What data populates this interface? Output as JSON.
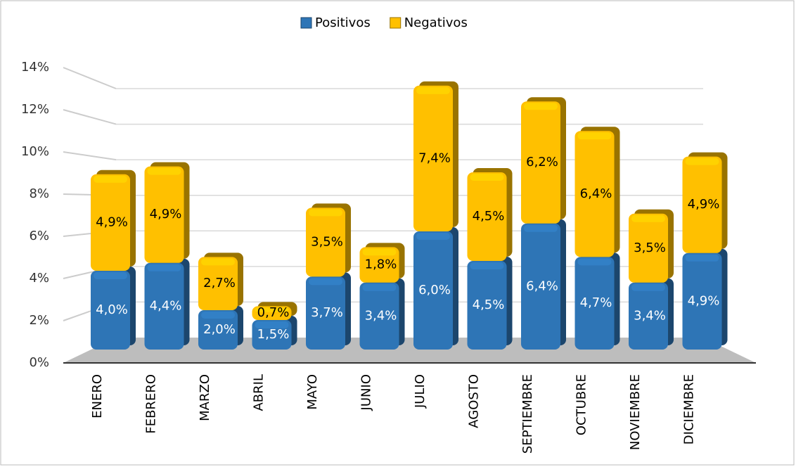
{
  "chart_data": {
    "type": "bar",
    "stacked": true,
    "categories": [
      "ENERO",
      "FEBRERO",
      "MARZO",
      "ABRIL",
      "MAYO",
      "JUNIO",
      "JULIO",
      "AGOSTO",
      "SEPTIEMBRE",
      "OCTUBRE",
      "NOVIEMBRE",
      "DICIEMBRE"
    ],
    "series": [
      {
        "name": "Positivos",
        "color": "#2e75b6",
        "values": [
          4.0,
          4.4,
          2.0,
          1.5,
          3.7,
          3.4,
          6.0,
          4.5,
          6.4,
          4.7,
          3.4,
          4.9
        ],
        "value_labels": [
          "4,0%",
          "4,4%",
          "2,0%",
          "1,5%",
          "3,7%",
          "3,4%",
          "6,0%",
          "4,5%",
          "6,4%",
          "4,7%",
          "3,4%",
          "4,9%"
        ]
      },
      {
        "name": "Negativos",
        "color": "#ffc000",
        "values": [
          4.9,
          4.9,
          2.7,
          0.7,
          3.5,
          1.8,
          7.4,
          4.5,
          6.2,
          6.4,
          3.5,
          4.9
        ],
        "value_labels": [
          "4,9%",
          "4,9%",
          "2,7%",
          "0,7%",
          "3,5%",
          "1,8%",
          "7,4%",
          "4,5%",
          "6,2%",
          "6,4%",
          "3,5%",
          "4,9%"
        ]
      }
    ],
    "ylim": [
      0,
      14
    ],
    "yticks": [
      {
        "value": 0,
        "label": "0%"
      },
      {
        "value": 2,
        "label": "2%"
      },
      {
        "value": 4,
        "label": "4%"
      },
      {
        "value": 6,
        "label": "6%"
      },
      {
        "value": 8,
        "label": "8%"
      },
      {
        "value": 10,
        "label": "10%"
      },
      {
        "value": 12,
        "label": "12%"
      },
      {
        "value": 14,
        "label": "14%"
      }
    ],
    "grid": true,
    "legend": "top"
  }
}
